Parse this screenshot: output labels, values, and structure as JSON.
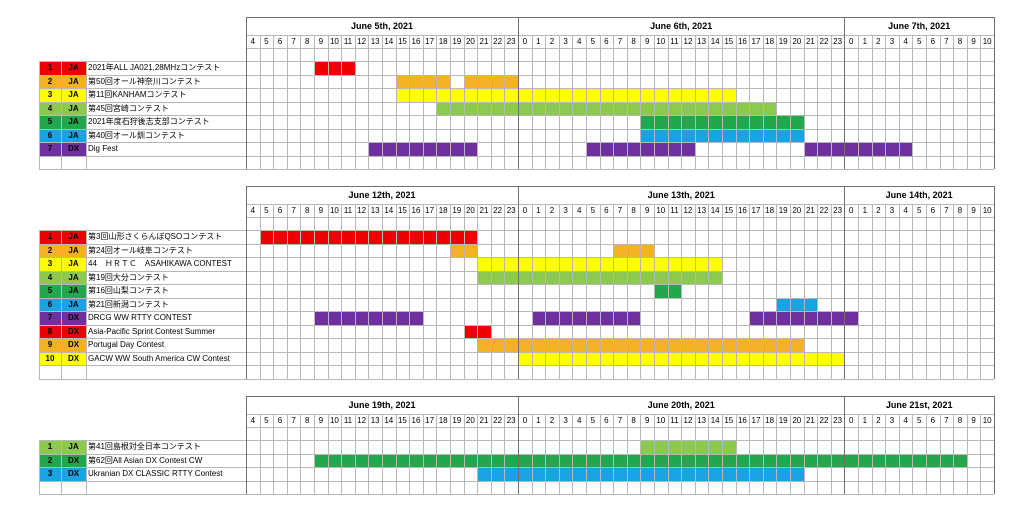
{
  "category_colors": {
    "c1": "#ee0000",
    "c2": "#f4b124",
    "c3": "#ffff00",
    "c4": "#8cc94f",
    "c5": "#23a74c",
    "c6": "#1aa3e3",
    "c7": "#7030a0"
  },
  "hours_label_start": [
    4,
    5,
    6,
    7,
    8,
    9,
    10,
    11,
    12,
    13,
    14,
    15,
    16,
    17,
    18,
    19,
    20,
    21,
    22,
    23
  ],
  "hours_label_mid": [
    0,
    1,
    2,
    3,
    4,
    5,
    6,
    7,
    8,
    9,
    10,
    11,
    12,
    13,
    14,
    15,
    16,
    17,
    18,
    19,
    20,
    21,
    22,
    23
  ],
  "hours_label_end": [
    0,
    1,
    2,
    3,
    4,
    5,
    6,
    7,
    8,
    9,
    10
  ],
  "blocks": [
    {
      "dates": [
        "June 5th, 2021",
        "June 6th, 2021",
        "June 7th, 2021"
      ],
      "rows": [
        {
          "num": "1",
          "type": "JA",
          "name": "2021年ALL JA021,28MHzコンテスト",
          "color": "c1",
          "start": 5,
          "end": 7
        },
        {
          "num": "2",
          "type": "JA",
          "name": "第50回オール神奈川コンテスト",
          "color": "c2",
          "start": 11,
          "end": 19,
          "gaps": [
            [
              14,
              16
            ]
          ]
        },
        {
          "num": "3",
          "type": "JA",
          "name": "第11回KANHAMコンテスト",
          "color": "c3",
          "start": 11,
          "end": 35
        },
        {
          "num": "4",
          "type": "JA",
          "name": "第45回宮崎コンテスト",
          "color": "c4",
          "start": 14,
          "end": 38
        },
        {
          "num": "5",
          "type": "JA",
          "name": "2021年度石狩後志支部コンテスト",
          "color": "c5",
          "start": 29,
          "end": 40
        },
        {
          "num": "6",
          "type": "JA",
          "name": "第40回オール釧コンテスト",
          "color": "c6",
          "start": 29,
          "end": 40
        },
        {
          "num": "7",
          "type": "DX",
          "name": "Dig Fest",
          "color": "c7",
          "start": 9,
          "end": 16,
          "extra": [
            [
              25,
              32
            ],
            [
              41,
              48
            ]
          ]
        }
      ],
      "empty_rows": 1
    },
    {
      "dates": [
        "June 12th, 2021",
        "June 13th, 2021",
        "June 14th, 2021"
      ],
      "rows": [
        {
          "num": "1",
          "type": "JA",
          "name": "第3回山形さくらんぼQSOコンテスト",
          "color": "c1",
          "start": 1,
          "end": 16
        },
        {
          "num": "2",
          "type": "JA",
          "name": "第24回オール岐阜コンテスト",
          "color": "c2",
          "start": 15,
          "end": 16,
          "extra": [
            [
              27,
              29
            ]
          ]
        },
        {
          "num": "3",
          "type": "JA",
          "name": "44　ＨＲＴＣ　ASAHIKAWA CONTEST",
          "color": "c3",
          "start": 17,
          "end": 34
        },
        {
          "num": "4",
          "type": "JA",
          "name": "第19回大分コンテスト",
          "color": "c4",
          "start": 17,
          "end": 34
        },
        {
          "num": "5",
          "type": "JA",
          "name": "第16回山梨コンテスト",
          "color": "c5",
          "start": 30,
          "end": 31
        },
        {
          "num": "6",
          "type": "JA",
          "name": "第21回新潟コンテスト",
          "color": "c6",
          "start": 39,
          "end": 41
        },
        {
          "num": "7",
          "type": "DX",
          "name": "DRCG WW RTTY CONTEST",
          "color": "c7",
          "start": 5,
          "end": 12,
          "extra": [
            [
              21,
              28
            ],
            [
              37,
              44
            ]
          ]
        },
        {
          "num": "8",
          "type": "DX",
          "name": "Asia-Pacific Sprint Contest Summer",
          "color": "c1",
          "start": 16,
          "end": 17
        },
        {
          "num": "9",
          "type": "DX",
          "name": "Portugal Day Contest",
          "color": "c2",
          "start": 17,
          "end": 40
        },
        {
          "num": "10",
          "type": "DX",
          "name": "GACW WW South America CW Contest",
          "color": "c3",
          "start": 20,
          "end": 43
        }
      ],
      "empty_rows": 1
    },
    {
      "dates": [
        "June 19th, 2021",
        "June 20th, 2021",
        "June 21st, 2021"
      ],
      "rows": [
        {
          "num": "1",
          "type": "JA",
          "name": "第41回島根対全日本コンテスト",
          "color": "c4",
          "start": 29,
          "end": 35
        },
        {
          "num": "2",
          "type": "DX",
          "name": "第62回All Asian DX Contest CW",
          "color": "c5",
          "start": 5,
          "end": 52
        },
        {
          "num": "3",
          "type": "DX",
          "name": "Ukranian DX CLASSIC RTTY Contest",
          "color": "c6",
          "start": 17,
          "end": 40
        }
      ],
      "empty_rows": 1
    }
  ]
}
